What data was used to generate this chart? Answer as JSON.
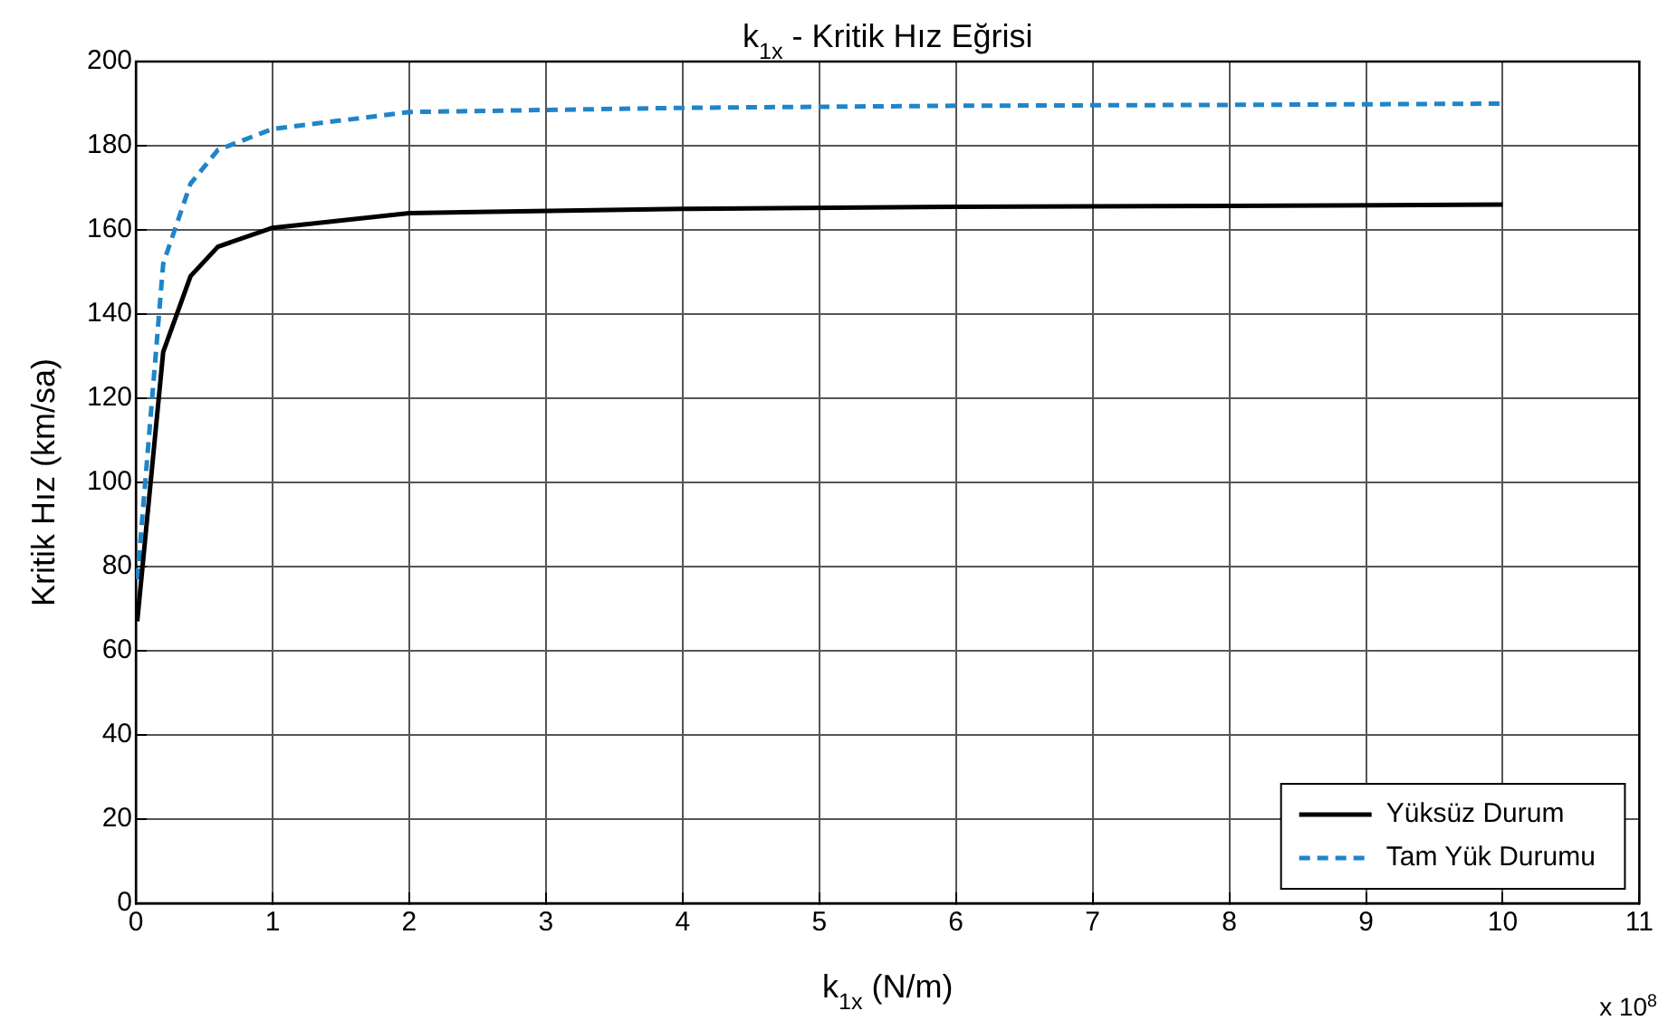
{
  "chart_data": {
    "type": "line",
    "title": "k$_{1x}$ - Kritik Hız Eğrisi",
    "xlabel": "k$_{1x}$ (N/m)",
    "ylabel": "Kritik Hız (km/sa)",
    "annotations": [
      "x 10$^{8}$"
    ],
    "x": [
      0.01,
      0.2,
      0.4,
      0.6,
      1,
      2,
      4,
      6,
      8,
      10
    ],
    "series": [
      {
        "name": "Yüksüz Durum",
        "color": "#000000",
        "line_style": "solid",
        "values": [
          67,
          131,
          149,
          156,
          160.5,
          164,
          165,
          165.5,
          165.7,
          166
        ]
      },
      {
        "name": "Tam Yük Durumu",
        "color": "#1f85c8",
        "line_style": "dashed",
        "values": [
          77,
          152,
          171,
          179,
          184,
          188,
          189,
          189.5,
          189.7,
          190
        ]
      }
    ],
    "xlim": [
      0,
      11
    ],
    "xticks": [
      0,
      1,
      2,
      3,
      4,
      5,
      6,
      7,
      8,
      9,
      10,
      11
    ],
    "ylim": [
      0,
      200
    ],
    "yticks": [
      0,
      20,
      40,
      60,
      80,
      100,
      120,
      140,
      160,
      180,
      200
    ],
    "grid": true,
    "legend": "bottom right",
    "marker": "none"
  }
}
